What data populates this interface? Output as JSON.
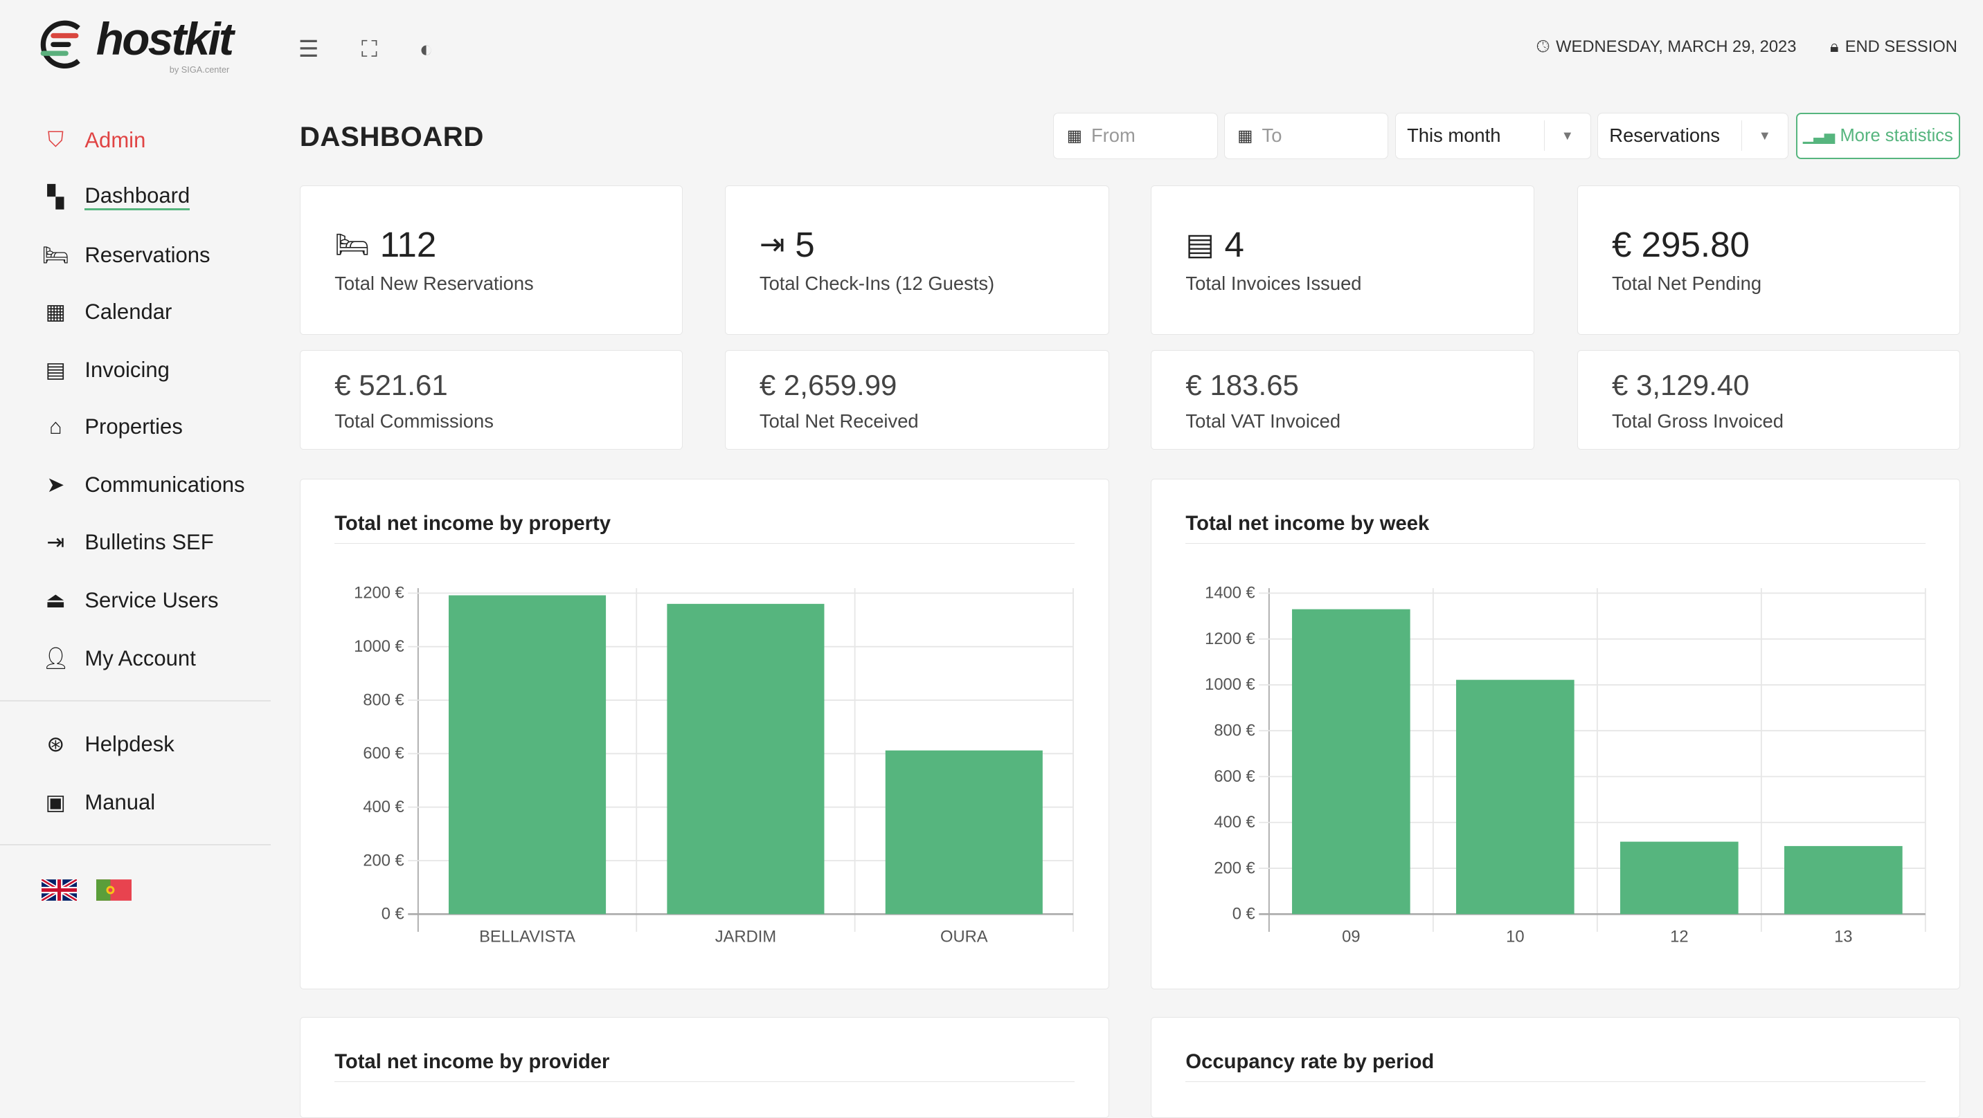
{
  "brand": {
    "name": "hostkit",
    "byline": "by SIGA.center"
  },
  "header": {
    "date": "WEDNESDAY, MARCH 29, 2023",
    "end_session": "END SESSION"
  },
  "sidebar": {
    "items": [
      {
        "label": "Admin",
        "icon": "shield-check-icon"
      },
      {
        "label": "Dashboard",
        "icon": "dashboard-icon"
      },
      {
        "label": "Reservations",
        "icon": "bed-icon"
      },
      {
        "label": "Calendar",
        "icon": "calendar-icon"
      },
      {
        "label": "Invoicing",
        "icon": "receipt-icon"
      },
      {
        "label": "Properties",
        "icon": "home-icon"
      },
      {
        "label": "Communications",
        "icon": "send-icon"
      },
      {
        "label": "Bulletins SEF",
        "icon": "door-enter-icon"
      },
      {
        "label": "Service Users",
        "icon": "bell-service-icon"
      },
      {
        "label": "My Account",
        "icon": "user-icon"
      }
    ],
    "support": [
      {
        "label": "Helpdesk",
        "icon": "lifebuoy-icon"
      },
      {
        "label": "Manual",
        "icon": "pdf-icon"
      }
    ],
    "languages": [
      "en",
      "pt"
    ]
  },
  "main": {
    "title": "DASHBOARD",
    "filters": {
      "from_placeholder": "From",
      "to_placeholder": "To",
      "period": "This month",
      "type": "Reservations",
      "more": "More statistics"
    },
    "stats_row1": [
      {
        "value": "112",
        "label": "Total New Reservations",
        "icon": "bed-icon"
      },
      {
        "value": "5",
        "label": "Total Check-Ins (12 Guests)",
        "icon": "door-enter-icon"
      },
      {
        "value": "4",
        "label": "Total Invoices Issued",
        "icon": "receipt-icon"
      },
      {
        "value": "€ 295.80",
        "label": "Total Net Pending",
        "icon": ""
      }
    ],
    "stats_row2": [
      {
        "value": "€ 521.61",
        "label": "Total Commissions"
      },
      {
        "value": "€ 2,659.99",
        "label": "Total Net Received"
      },
      {
        "value": "€ 183.65",
        "label": "Total VAT Invoiced"
      },
      {
        "value": "€ 3,129.40",
        "label": "Total Gross Invoiced"
      }
    ],
    "more_charts": [
      "Total net income by provider",
      "Occupancy rate by period"
    ]
  },
  "colors": {
    "accent": "#56b57e",
    "admin": "#e04444"
  },
  "chart_data": [
    {
      "type": "bar",
      "title": "Total net income by property",
      "categories": [
        "BELLAVISTA",
        "JARDIM",
        "OURA"
      ],
      "values": [
        1192,
        1160,
        612
      ],
      "ylim": [
        0,
        1200
      ],
      "yticks": [
        "0 €",
        "200 €",
        "400 €",
        "600 €",
        "800 €",
        "1000 €",
        "1200 €"
      ],
      "grid": true,
      "color": "#56b57e"
    },
    {
      "type": "bar",
      "title": "Total net income by week",
      "categories": [
        "09",
        "10",
        "12",
        "13"
      ],
      "values": [
        1330,
        1022,
        316,
        297
      ],
      "ylim": [
        0,
        1400
      ],
      "yticks": [
        "0 €",
        "200 €",
        "400 €",
        "600 €",
        "800 €",
        "1000 €",
        "1200 €",
        "1400 €"
      ],
      "grid": true,
      "color": "#56b57e"
    }
  ]
}
